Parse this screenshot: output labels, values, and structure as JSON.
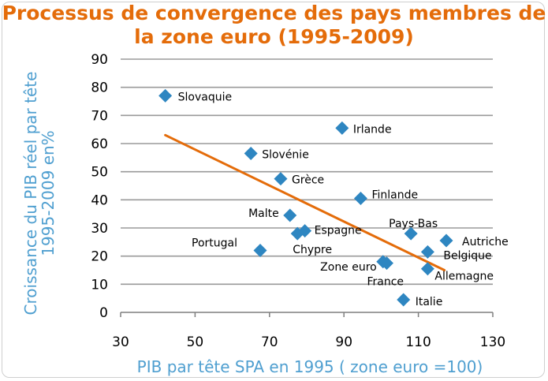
{
  "chart_data": {
    "type": "scatter",
    "title_line1": "Processus de convergence des pays membres de",
    "title_line2": "la zone euro (1995-2009)",
    "xlabel": "PIB par tête SPA en 1995 ( zone euro =100)",
    "ylabel_line1": "Croissance du PIB réel par tête",
    "ylabel_line2": "1995-2009 en%",
    "xlim": [
      30,
      130
    ],
    "ylim": [
      0,
      90
    ],
    "xticks": [
      "30",
      "50",
      "70",
      "90",
      "110",
      "130"
    ],
    "yticks": [
      "0",
      "10",
      "20",
      "30",
      "40",
      "50",
      "60",
      "70",
      "80",
      "90"
    ],
    "grid": true,
    "marker_color": "#2E86C1",
    "trend_color": "#E46C0A",
    "points": [
      {
        "label": "Slovaquie",
        "x": 42,
        "y": 77
      },
      {
        "label": "Irlande",
        "x": 89.5,
        "y": 65.5
      },
      {
        "label": "Slovénie",
        "x": 65,
        "y": 56.5
      },
      {
        "label": "Grèce",
        "x": 73,
        "y": 47.5
      },
      {
        "label": "Finlande",
        "x": 94.5,
        "y": 40.5
      },
      {
        "label": "Malte",
        "x": 75.5,
        "y": 34.5
      },
      {
        "label": "Pays-Bas",
        "x": 108,
        "y": 28
      },
      {
        "label": "Espagne",
        "x": 79.5,
        "y": 29
      },
      {
        "label": "Chypre",
        "x": 77.5,
        "y": 28
      },
      {
        "label": "Autriche",
        "x": 117.5,
        "y": 25.5
      },
      {
        "label": "Portugal",
        "x": 67.5,
        "y": 22
      },
      {
        "label": "Belgique",
        "x": 112.5,
        "y": 21.5
      },
      {
        "label": "Zone euro",
        "x": 100.5,
        "y": 18
      },
      {
        "label": "France",
        "x": 101.5,
        "y": 17.5
      },
      {
        "label": "Allemagne",
        "x": 112.5,
        "y": 15.5
      },
      {
        "label": "Italie",
        "x": 106,
        "y": 4.5
      }
    ],
    "trendline": {
      "x": [
        42,
        117
      ],
      "y": [
        63,
        15
      ]
    }
  }
}
